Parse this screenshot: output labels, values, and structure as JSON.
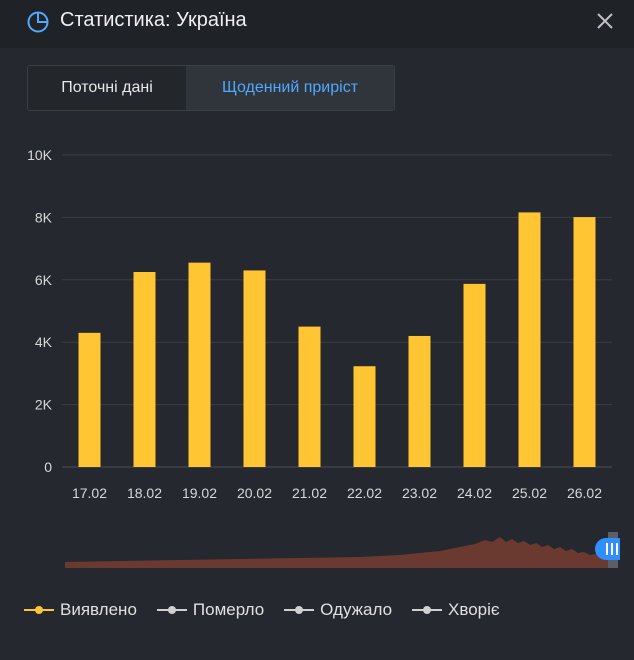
{
  "window": {
    "title": "Статистика: Україна"
  },
  "tabs": [
    {
      "label": "Поточні дані",
      "active": false
    },
    {
      "label": "Щоденний приріст",
      "active": true
    }
  ],
  "colors": {
    "bar": "#ffc533",
    "accent": "#4fa9ff",
    "navigator_fill": "#6a3a30"
  },
  "chart_data": {
    "type": "bar",
    "categories": [
      "17.02",
      "18.02",
      "19.02",
      "20.02",
      "21.02",
      "22.02",
      "23.02",
      "24.02",
      "25.02",
      "26.02"
    ],
    "series": [
      {
        "name": "Виявлено",
        "values": [
          4300,
          6250,
          6550,
          6300,
          4500,
          3230,
          4200,
          5870,
          8160,
          8010
        ]
      }
    ],
    "yticks": [
      "0",
      "2K",
      "4K",
      "6K",
      "8K",
      "10K"
    ],
    "ylim": [
      0,
      10000
    ],
    "grid": true
  },
  "legend": [
    {
      "label": "Виявлено",
      "color": "#ffc533"
    },
    {
      "label": "Померло",
      "color": "#d0d0d0"
    },
    {
      "label": "Одужало",
      "color": "#d0d0d0"
    },
    {
      "label": "Хворіє",
      "color": "#d0d0d0"
    }
  ]
}
